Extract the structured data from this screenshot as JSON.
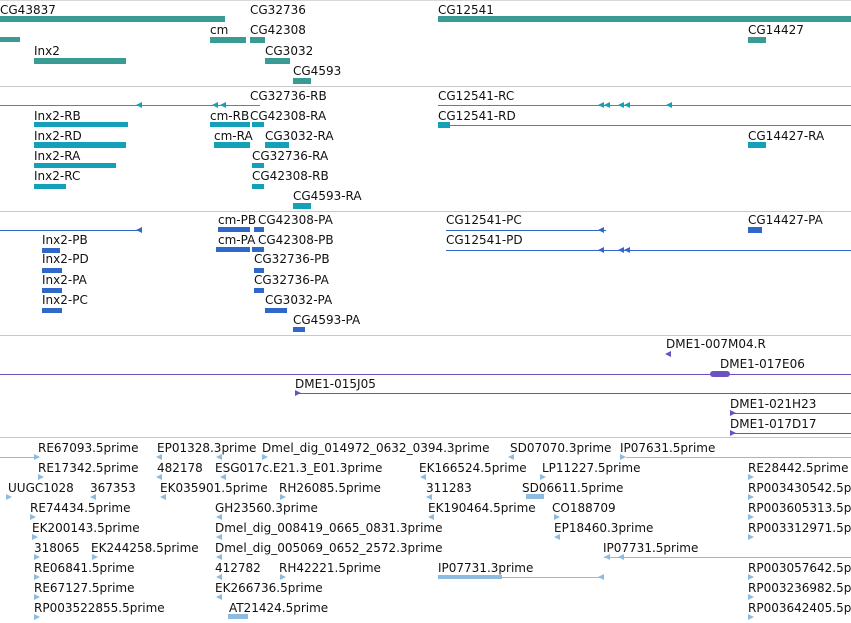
{
  "colors": {
    "gene": "#3a9a94",
    "transcript": "#14a0b8",
    "mrna": "#2f68c8",
    "cdna": "#6b52c0",
    "est": "#8dbce0",
    "divider": "#c8c8c8"
  },
  "tracks": {
    "genes": {
      "labels": [
        "CG43837",
        "CG32736",
        "CG12541",
        "cm",
        "CG42308",
        "CG14427",
        "Inx2",
        "CG3032",
        "CG4593"
      ]
    },
    "transcripts": {
      "labels": [
        "CG32736-RB",
        "CG12541-RC",
        "Inx2-RB",
        "cm-RB",
        "CG42308-RA",
        "CG12541-RD",
        "Inx2-RD",
        "cm-RA",
        "CG3032-RA",
        "CG14427-RA",
        "Inx2-RA",
        "CG32736-RA",
        "Inx2-RC",
        "CG42308-RB",
        "CG4593-RA"
      ]
    },
    "mrna": {
      "labels": [
        "cm-PB",
        "CG42308-PA",
        "CG12541-PC",
        "CG14427-PA",
        "Inx2-PB",
        "cm-PA",
        "CG42308-PB",
        "CG12541-PD",
        "Inx2-PD",
        "CG32736-PB",
        "Inx2-PA",
        "CG32736-PA",
        "Inx2-PC",
        "CG3032-PA",
        "CG4593-PA"
      ]
    },
    "cdna": {
      "labels": [
        "DME1-007M04.R",
        "DME1-017E06",
        "DME1-015J05",
        "DME1-021H23",
        "DME1-017D17"
      ]
    },
    "est": {
      "labels": [
        "RE67093.5prime",
        "EP01328.3prime",
        "Dmel_dig_014972_0632_0394.3prime",
        "SD07070.3prime",
        "IP07631.5prime",
        "RE17342.5prime",
        "482178",
        "ESG017c.E21.3_E01.3prime",
        "EK166524.5prime",
        "LP11227.5prime",
        "RE28442.5prime",
        "UUGC1028",
        "367353",
        "EK035901.5prime",
        "RH26085.5prime",
        "311283",
        "SD06611.5prime",
        "RP003430542.5prime",
        "RE74434.5prime",
        "GH23560.3prime",
        "EK190464.5prime",
        "CO188709",
        "RP003605313.5prime",
        "EK200143.5prime",
        "Dmel_dig_008419_0665_0831.3prime",
        "EP18460.3prime",
        "RP003312971.5prime",
        "318065",
        "EK244258.5prime",
        "Dmel_dig_005069_0652_2572.3prime",
        "IP07731.5prime",
        "RE06841.5prime",
        "412782",
        "RH42221.5prime",
        "IP07731.3prime",
        "RP003057642.5prime",
        "RE67127.5prime",
        "EK266736.5prime",
        "RP003236982.5prime",
        "RP003522855.5prime",
        "AT21424.5prime",
        "RP003642405.5prime"
      ]
    }
  }
}
